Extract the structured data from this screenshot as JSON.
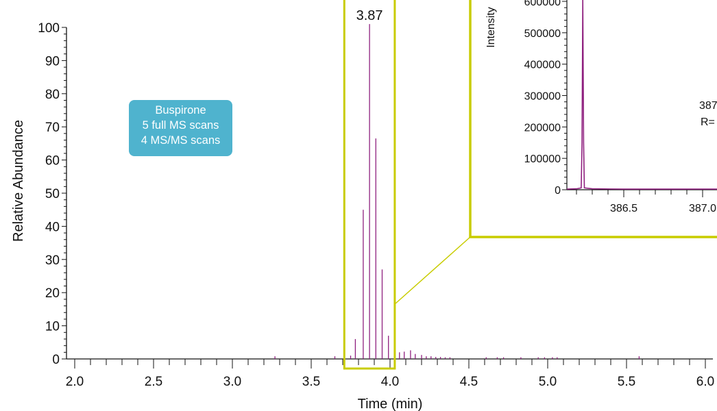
{
  "colors": {
    "trace": "#8e1f7e",
    "highlight": "#c8cc00",
    "callout_bg": "#4fb3ce",
    "axis": "#111111"
  },
  "callout": {
    "lines": [
      "Buspirone",
      "5 full MS scans",
      "4 MS/MS scans"
    ]
  },
  "chart_data": [
    {
      "type": "bar",
      "xlabel": "Time (min)",
      "ylabel": "Relative Abundance",
      "xlim": [
        1.97,
        6.05
      ],
      "ylim": [
        0,
        100
      ],
      "xticks": [
        "2.0",
        "2.5",
        "3.0",
        "3.5",
        "4.0",
        "4.5",
        "5.0",
        "5.5",
        "6.0"
      ],
      "yticks": [
        "0",
        "10",
        "20",
        "30",
        "40",
        "50",
        "60",
        "70",
        "80",
        "90",
        "100"
      ],
      "peak_label": "3.87",
      "highlight_window": [
        3.71,
        4.03
      ],
      "x": [
        3.27,
        3.65,
        3.75,
        3.78,
        3.83,
        3.87,
        3.91,
        3.95,
        3.99,
        4.03,
        4.06,
        4.09,
        4.13,
        4.16,
        4.2,
        4.23,
        4.26,
        4.29,
        4.32,
        4.35,
        4.38,
        4.61,
        4.68,
        4.72,
        4.83,
        4.94,
        4.98,
        5.03,
        5.06,
        5.58
      ],
      "values": [
        0.8,
        0.8,
        1.0,
        6.0,
        45.0,
        101.0,
        66.5,
        27.0,
        7.0,
        2.5,
        2.0,
        2.2,
        2.6,
        1.5,
        1.2,
        0.8,
        0.8,
        0.6,
        0.6,
        0.5,
        0.5,
        0.5,
        0.5,
        0.5,
        0.5,
        0.5,
        0.5,
        0.5,
        0.5,
        0.8
      ]
    },
    {
      "type": "line",
      "ylabel": "Intensity",
      "xlim": [
        386.12,
        387.25
      ],
      "ylim": [
        0,
        680000
      ],
      "xticks": [
        "386.5",
        "387.0"
      ],
      "yticks": [
        "0",
        "100000",
        "200000",
        "300000",
        "400000",
        "500000",
        "600000"
      ],
      "annotation_lines": [
        "387",
        "R="
      ],
      "x": [
        386.12,
        386.2,
        386.23,
        386.235,
        386.24,
        386.245,
        386.25,
        386.3,
        386.5,
        386.7,
        386.9,
        387.1,
        387.25
      ],
      "y": [
        2000,
        3000,
        6000,
        150000,
        680000,
        150000,
        6000,
        3000,
        2000,
        2000,
        2000,
        2000,
        2000
      ]
    }
  ]
}
